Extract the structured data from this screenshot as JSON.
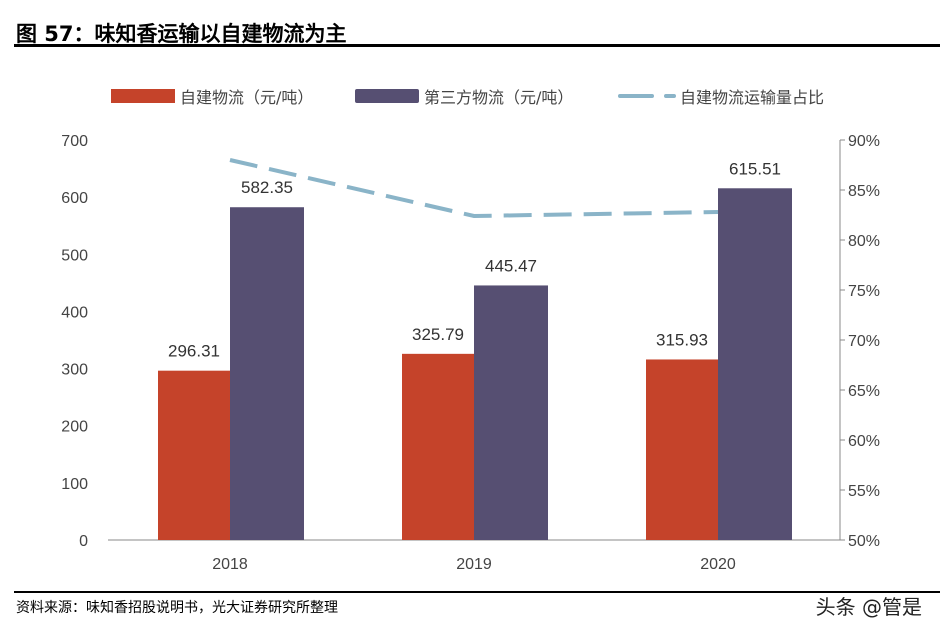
{
  "header": {
    "title": "图 57：味知香运输以自建物流为主"
  },
  "footer": {
    "source": "资料来源：味知香招股说明书，光大证券研究所整理",
    "watermark": "头条 @管是"
  },
  "chart_data": {
    "type": "bar+line",
    "title": "",
    "categories": [
      "2018",
      "2019",
      "2020"
    ],
    "series": [
      {
        "name": "自建物流（元/吨）",
        "type": "bar",
        "axis": "left",
        "color": "#C5432A",
        "values": [
          296.31,
          325.79,
          315.93
        ]
      },
      {
        "name": "第三方物流（元/吨）",
        "type": "bar",
        "axis": "left",
        "color": "#564F72",
        "values": [
          582.35,
          445.47,
          615.51
        ]
      },
      {
        "name": "自建物流运输量占比",
        "type": "line",
        "style": "dashed",
        "axis": "right",
        "color": "#8AB4C8",
        "values": [
          88.0,
          82.4,
          82.8
        ]
      }
    ],
    "left_axis": {
      "ylim": [
        0,
        700
      ],
      "ticks": [
        "0",
        "100",
        "200",
        "300",
        "400",
        "500",
        "600",
        "700"
      ]
    },
    "right_axis": {
      "ylim": [
        50,
        90
      ],
      "ticks": [
        "50%",
        "55%",
        "60%",
        "65%",
        "70%",
        "75%",
        "80%",
        "85%",
        "90%"
      ]
    },
    "legend_position": "top",
    "grid": false
  }
}
